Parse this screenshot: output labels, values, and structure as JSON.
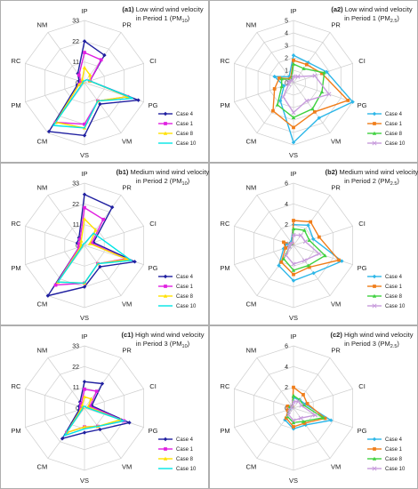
{
  "chart_data": [
    {
      "type": "radar",
      "panel": "a1",
      "title_bold": "(a1)",
      "title_line1": "Low wind wind velocity",
      "title_line2": "in Period 1 (PM",
      "pollutant_sub": "10",
      "axes": [
        "IP",
        "PR",
        "CI",
        "PG",
        "VM",
        "VS",
        "CM",
        "PM",
        "RC",
        "NM"
      ],
      "ticks": [
        "0",
        "11",
        "22",
        "33"
      ],
      "max": 33,
      "series": [
        {
          "name": "Case 4",
          "color": "#1f1fa0",
          "marker": "diamond",
          "values": [
            22,
            18,
            3,
            30,
            14,
            28,
            32,
            4,
            3,
            6
          ]
        },
        {
          "name": "Case 1",
          "color": "#e020e0",
          "marker": "square",
          "values": [
            16,
            15,
            3,
            24,
            12,
            22,
            26,
            3,
            2,
            5
          ]
        },
        {
          "name": "Case 8",
          "color": "#ffe000",
          "marker": "triangle",
          "values": [
            8,
            5,
            3,
            24,
            12,
            24,
            26,
            3,
            1,
            2
          ]
        },
        {
          "name": "Case 10",
          "color": "#00e5e5",
          "marker": "none",
          "values": [
            1,
            2,
            3,
            27,
            12,
            24,
            28,
            1,
            1,
            1
          ]
        }
      ]
    },
    {
      "type": "radar",
      "panel": "a2",
      "title_bold": "(a2)",
      "title_line1": "Low wind wind velocity",
      "title_line2": "in Period 1 (PM",
      "pollutant_sub": "2.5",
      "axes": [
        "IP",
        "PR",
        "CI",
        "PG",
        "VM",
        "VS",
        "CM",
        "PM",
        "RC",
        "NM"
      ],
      "ticks": [
        "0",
        "1",
        "2",
        "3",
        "4",
        "5"
      ],
      "max": 5,
      "series": [
        {
          "name": "Case 4",
          "color": "#2db7e8",
          "marker": "diamond",
          "values": [
            2.2,
            2.0,
            2.8,
            5.0,
            3.5,
            4.8,
            1.8,
            0.8,
            1.6,
            0.6
          ]
        },
        {
          "name": "Case 1",
          "color": "#f07d1a",
          "marker": "square",
          "values": [
            1.8,
            1.8,
            2.4,
            4.6,
            2.9,
            3.6,
            2.8,
            1.6,
            1.2,
            0.4
          ]
        },
        {
          "name": "Case 8",
          "color": "#3fd13f",
          "marker": "triangle",
          "values": [
            1.5,
            1.4,
            2.6,
            2.4,
            2.6,
            2.8,
            2.2,
            1.0,
            1.0,
            0.3
          ]
        },
        {
          "name": "Case 10",
          "color": "#c79bdc",
          "marker": "cross",
          "values": [
            0.5,
            0.6,
            1.8,
            3.0,
            1.8,
            2.4,
            1.4,
            0.4,
            0.4,
            0.2
          ]
        }
      ]
    },
    {
      "type": "radar",
      "panel": "b1",
      "title_bold": "(b1)",
      "title_line1": "Medium wind wind velocity",
      "title_line2": "in Period 2 (PM",
      "pollutant_sub": "10",
      "axes": [
        "IP",
        "PR",
        "CI",
        "PG",
        "VM",
        "VS",
        "CM",
        "PM",
        "RC",
        "NM"
      ],
      "ticks": [
        "0",
        "11",
        "22",
        "33"
      ],
      "max": 33,
      "series": [
        {
          "name": "Case 4",
          "color": "#1f1fa0",
          "marker": "diamond",
          "values": [
            27,
            25,
            5,
            28,
            14,
            22,
            33,
            3,
            4,
            5
          ]
        },
        {
          "name": "Case 1",
          "color": "#e020e0",
          "marker": "square",
          "values": [
            20,
            17,
            4,
            23,
            12,
            20,
            26,
            3,
            3,
            4
          ]
        },
        {
          "name": "Case 8",
          "color": "#ffe000",
          "marker": "triangle",
          "values": [
            14,
            10,
            3,
            24,
            12,
            20,
            24,
            2,
            2,
            3
          ]
        },
        {
          "name": "Case 10",
          "color": "#00e5e5",
          "marker": "none",
          "values": [
            1,
            8,
            10,
            26,
            12,
            20,
            24,
            1,
            1,
            1
          ]
        }
      ]
    },
    {
      "type": "radar",
      "panel": "b2",
      "title_bold": "(b2)",
      "title_line1": "Medium wind wind velocity",
      "title_line2": "in Period 2 (PM",
      "pollutant_sub": "2.5",
      "axes": [
        "IP",
        "PR",
        "CI",
        "PG",
        "VM",
        "VS",
        "CM",
        "PM",
        "RC",
        "NM"
      ],
      "ticks": [
        "0",
        "2",
        "4",
        "6"
      ],
      "max": 6,
      "series": [
        {
          "name": "Case 4",
          "color": "#2db7e8",
          "marker": "diamond",
          "values": [
            2.0,
            2.4,
            2.0,
            4.9,
            3.3,
            3.4,
            2.4,
            1.0,
            0.6,
            0.4
          ]
        },
        {
          "name": "Case 1",
          "color": "#f07d1a",
          "marker": "square",
          "values": [
            2.4,
            2.8,
            2.6,
            4.6,
            2.6,
            2.8,
            2.0,
            0.8,
            1.0,
            0.2
          ]
        },
        {
          "name": "Case 8",
          "color": "#3fd13f",
          "marker": "triangle",
          "values": [
            1.6,
            1.8,
            1.6,
            3.2,
            2.4,
            2.4,
            1.6,
            0.4,
            0.4,
            0.2
          ]
        },
        {
          "name": "Case 10",
          "color": "#c79bdc",
          "marker": "cross",
          "values": [
            1.0,
            1.2,
            1.2,
            2.6,
            1.8,
            1.8,
            1.2,
            0.4,
            0.4,
            0.2
          ]
        }
      ]
    },
    {
      "type": "radar",
      "panel": "c1",
      "title_bold": "(c1)",
      "title_line1": "High wind wind velocity",
      "title_line2": "in Period 3 (PM",
      "pollutant_sub": "10",
      "axes": [
        "IP",
        "PR",
        "CI",
        "PG",
        "VM",
        "VS",
        "CM",
        "PM",
        "RC",
        "NM"
      ],
      "ticks": [
        "0",
        "11",
        "22",
        "33"
      ],
      "max": 33,
      "series": [
        {
          "name": "Case 4",
          "color": "#1f1fa0",
          "marker": "diamond",
          "values": [
            14,
            16,
            4,
            25,
            14,
            13,
            20,
            3,
            3,
            4
          ]
        },
        {
          "name": "Case 1",
          "color": "#e020e0",
          "marker": "square",
          "values": [
            10,
            11,
            3,
            22,
            12,
            10,
            16,
            2,
            2,
            3
          ]
        },
        {
          "name": "Case 8",
          "color": "#ffe000",
          "marker": "triangle",
          "values": [
            6,
            6,
            2,
            20,
            12,
            10,
            16,
            2,
            1,
            2
          ]
        },
        {
          "name": "Case 10",
          "color": "#00e5e5",
          "marker": "none",
          "values": [
            1,
            1,
            1,
            22,
            12,
            11,
            18,
            1,
            1,
            1
          ]
        }
      ]
    },
    {
      "type": "radar",
      "panel": "c2",
      "title_bold": "(c2)",
      "title_line1": "High wind wind velocity",
      "title_line2": "in Period 3 (PM",
      "pollutant_sub": "2.5",
      "axes": [
        "IP",
        "PR",
        "CI",
        "PG",
        "VM",
        "VS",
        "CM",
        "PM",
        "RC",
        "NM"
      ],
      "ticks": [
        "0",
        "2",
        "4",
        "6"
      ],
      "max": 6,
      "series": [
        {
          "name": "Case 4",
          "color": "#2db7e8",
          "marker": "diamond",
          "values": [
            1.0,
            1.0,
            1.2,
            3.8,
            2.0,
            2.0,
            1.4,
            0.4,
            0.4,
            0.2
          ]
        },
        {
          "name": "Case 1",
          "color": "#f07d1a",
          "marker": "square",
          "values": [
            2.0,
            1.6,
            1.4,
            3.2,
            1.8,
            1.8,
            1.2,
            0.6,
            0.6,
            0.2
          ]
        },
        {
          "name": "Case 8",
          "color": "#3fd13f",
          "marker": "triangle",
          "values": [
            1.2,
            1.0,
            1.0,
            3.0,
            1.6,
            1.4,
            1.0,
            0.4,
            0.4,
            0.2
          ]
        },
        {
          "name": "Case 10",
          "color": "#c79bdc",
          "marker": "cross",
          "values": [
            0.6,
            0.8,
            0.8,
            2.2,
            1.2,
            1.2,
            0.8,
            0.4,
            0.2,
            0.2
          ]
        }
      ]
    }
  ]
}
